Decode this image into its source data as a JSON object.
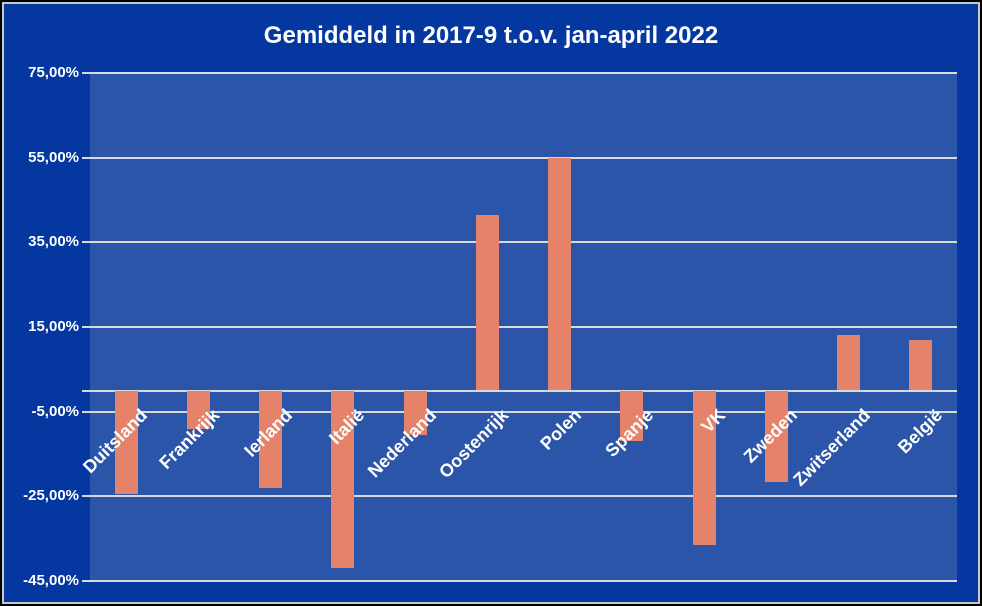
{
  "chart_data": {
    "type": "bar",
    "title": "Gemiddeld in 2017-9 t.o.v. jan-april 2022",
    "categories": [
      "Duitsland",
      "Frankrijk",
      "Ierland",
      "Italië",
      "Nederland",
      "Oostenrijk",
      "Polen",
      "Spanje",
      "VK",
      "Zweden",
      "Zwitserland",
      "België"
    ],
    "values": [
      -24.5,
      -9,
      -23,
      -42,
      -10.5,
      41.5,
      55,
      -12,
      -36.5,
      -21.5,
      13,
      12
    ],
    "xlabel": "",
    "ylabel": "",
    "y_axis": {
      "min": -45,
      "max": 75,
      "tick_values": [
        75,
        55,
        35,
        15,
        -5,
        -25,
        -45
      ],
      "tick_labels": [
        "75,00%",
        "55,00%",
        "35,00%",
        "15,00%",
        "-5,00%",
        "-25,00%",
        "-45,00%"
      ]
    },
    "baseline": 0,
    "grid": true,
    "legend": false,
    "bar_color": "#E5826A",
    "colors": {
      "bar": "#E5826A",
      "plot_background": "#2A55A8",
      "chart_background": "#0438A0",
      "gridline": "#D9D9D9",
      "text": "#FFFFFF",
      "frame_inner": "#C8C8C8",
      "frame_outer": "#000000"
    }
  }
}
